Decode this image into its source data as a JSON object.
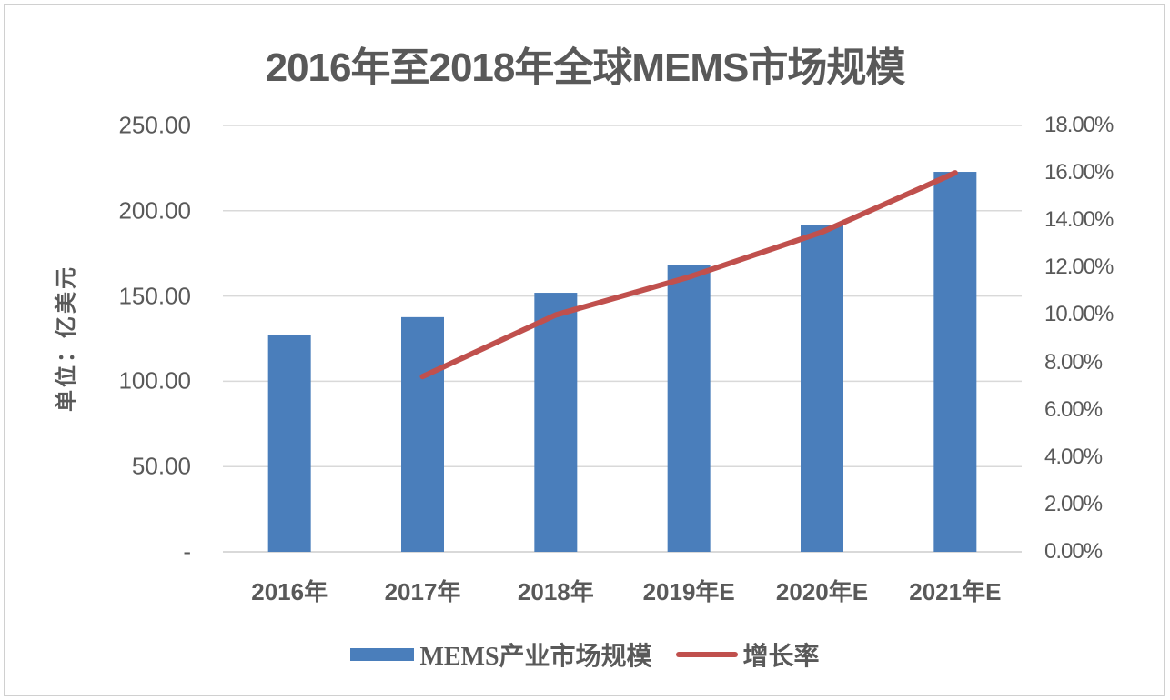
{
  "chart_data": {
    "type": "bar+line",
    "title": "2016年至2018年全球MEMS市场规模",
    "xlabel": "",
    "ylabel": "单位：亿美元",
    "y2label": "",
    "categories": [
      "2016年",
      "2017年",
      "2018年",
      "2019年E",
      "2020年E",
      "2021年E"
    ],
    "series": [
      {
        "name": "MEMS产业市场规模",
        "type": "bar",
        "axis": "left",
        "color": "#4a7ebb",
        "values": [
          127.4,
          137.6,
          151.9,
          168.4,
          191.4,
          222.8
        ]
      },
      {
        "name": "增长率",
        "type": "line",
        "axis": "right",
        "color": "#c0504d",
        "values": [
          null,
          7.4,
          10.0,
          11.6,
          13.5,
          16.0
        ],
        "unit": "%"
      }
    ],
    "ylim": [
      0,
      250
    ],
    "y2lim": [
      0,
      18
    ],
    "yticks": [
      "-",
      "50.00",
      "100.00",
      "150.00",
      "200.00",
      "250.00"
    ],
    "y2ticks": [
      "0.00%",
      "2.00%",
      "4.00%",
      "6.00%",
      "8.00%",
      "10.00%",
      "12.00%",
      "14.00%",
      "16.00%",
      "18.00%"
    ],
    "grid": true,
    "legend_position": "bottom"
  },
  "legend": {
    "bar_label": "MEMS产业市场规模",
    "line_label": "增长率"
  }
}
